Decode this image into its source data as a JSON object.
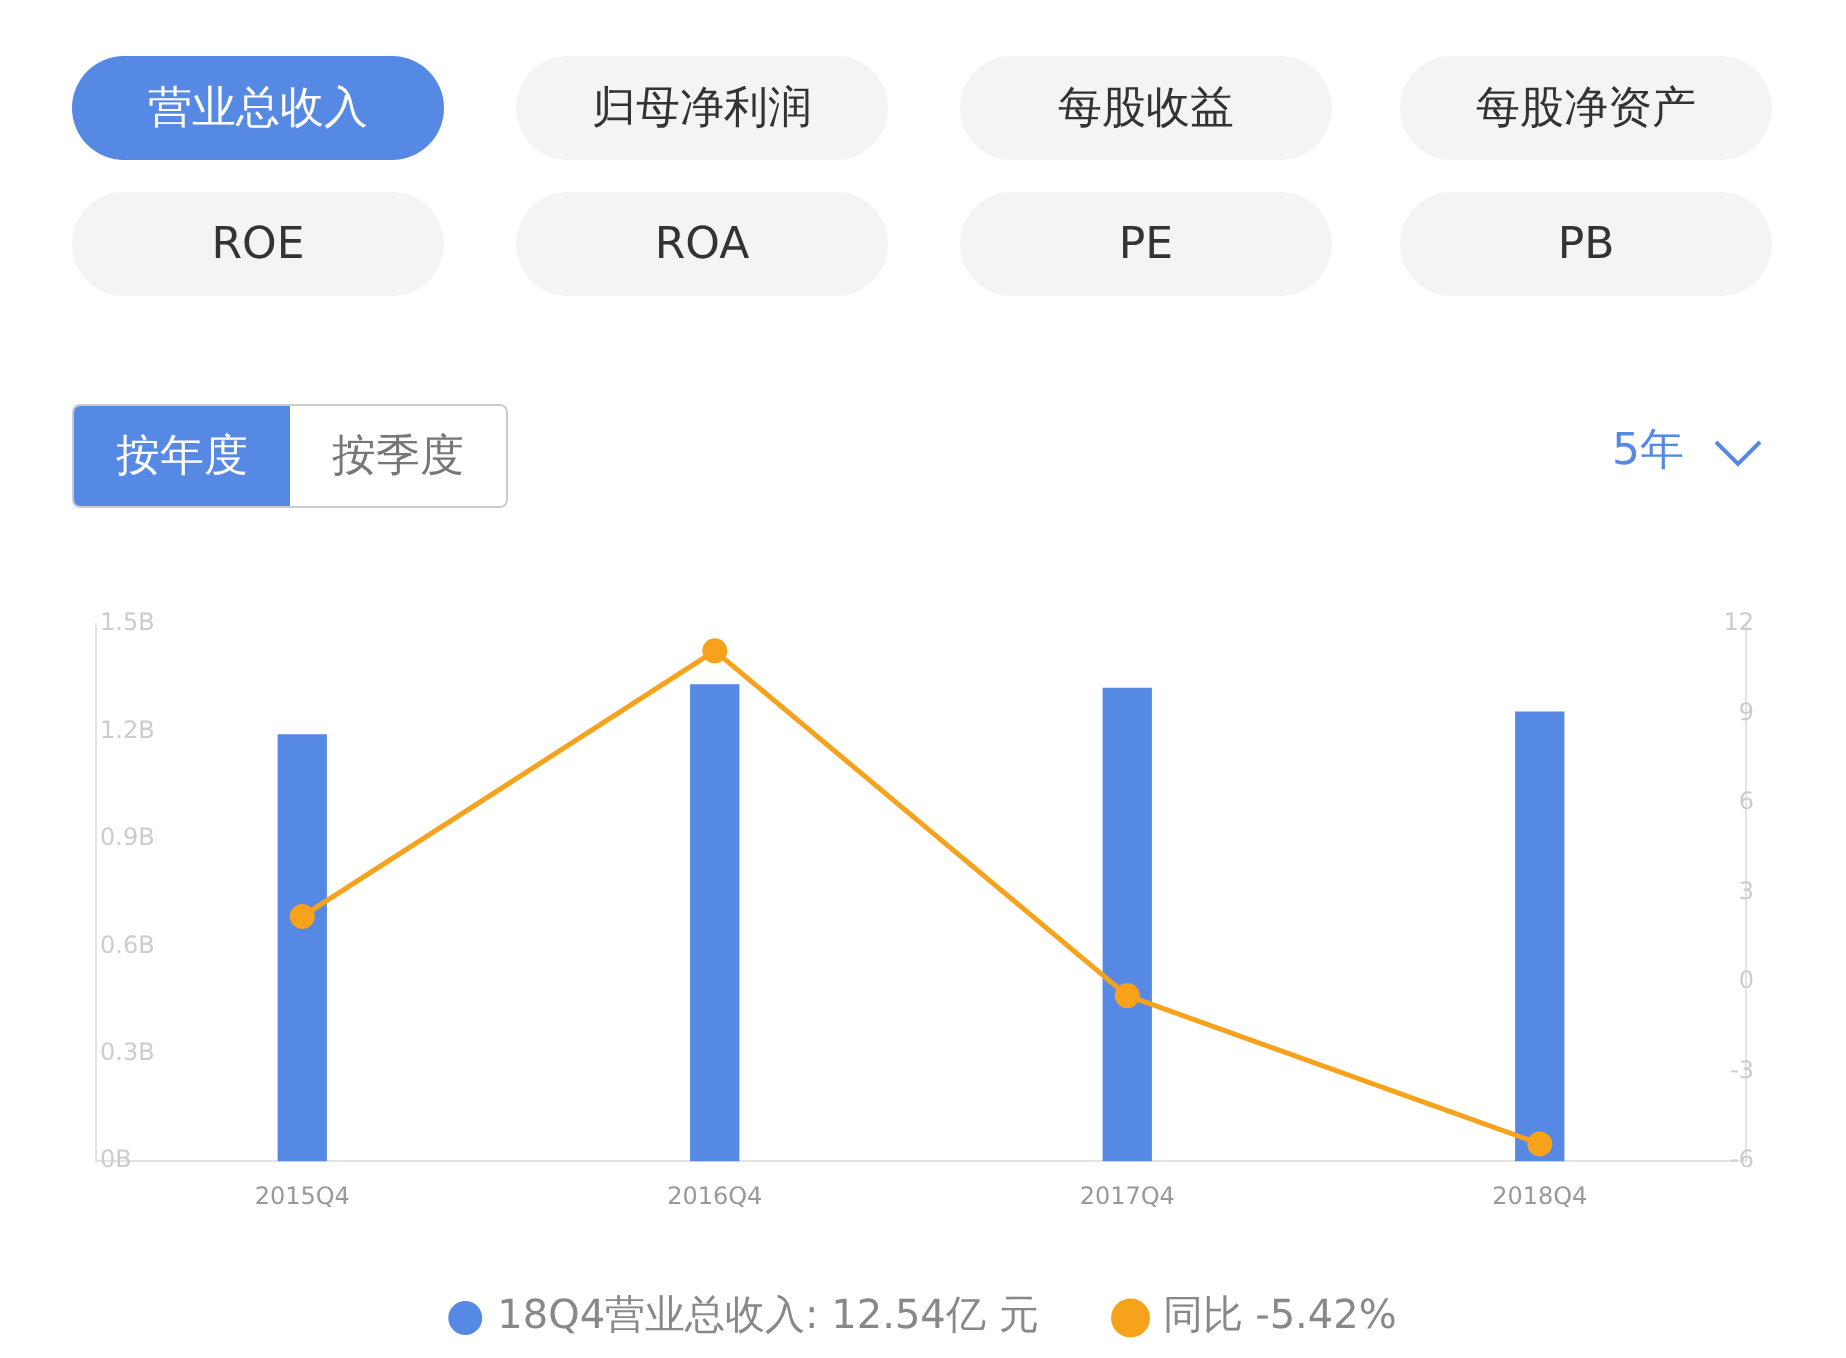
{
  "chart_data": {
    "type": "bar",
    "categories": [
      "2015Q4",
      "2016Q4",
      "2017Q4",
      "2018Q4"
    ],
    "series": [
      {
        "name": "18Q4营业总收入: 12.54亿 元",
        "color": "#5589e4",
        "values": [
          1.19,
          1.33,
          1.32,
          1.254
        ]
      },
      {
        "name": "同比 -5.42%",
        "type": "line",
        "axis": "y2",
        "color": "#f7a21b",
        "values": [
          2.2,
          11.1,
          -0.45,
          -5.42
        ]
      }
    ],
    "ylim": [
      0,
      1.5
    ],
    "yticks": [
      {
        "value": 0,
        "label": "0B"
      },
      {
        "value": 0.3,
        "label": "0.3B"
      },
      {
        "value": 0.6,
        "label": "0.6B"
      },
      {
        "value": 0.9,
        "label": "0.9B"
      },
      {
        "value": 1.2,
        "label": "1.2B"
      },
      {
        "value": 1.5,
        "label": "1.5B"
      }
    ],
    "y2lim": [
      -6,
      12
    ],
    "y2ticks": [
      -6,
      -3,
      0,
      3,
      6,
      9,
      12
    ],
    "grid": false,
    "legend": "bottom",
    "marker": "circle",
    "line_style": "solid",
    "annotations": [
      "营业总收入",
      "归母净利润",
      "每股收益",
      "每股净资产",
      "ROE",
      "ROA",
      "PE",
      "PB",
      "按年度",
      "按季度",
      "5年"
    ]
  }
}
